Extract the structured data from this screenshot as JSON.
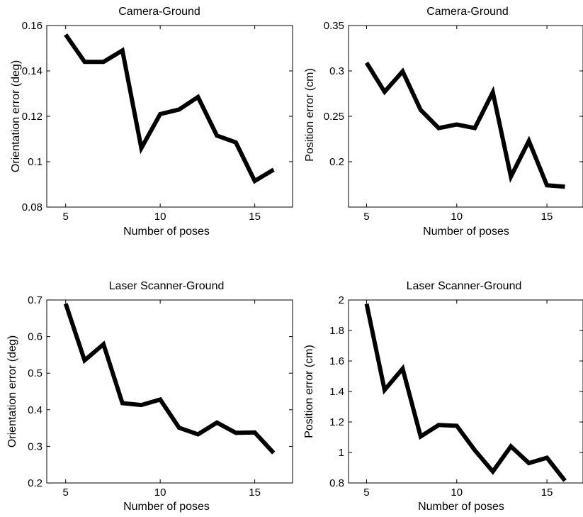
{
  "chart_data": [
    {
      "type": "line",
      "title": "Camera-Ground",
      "xlabel": "Number of poses",
      "ylabel": "Orientation error (deg)",
      "xlim": [
        4,
        17
      ],
      "ylim": [
        0.08,
        0.16
      ],
      "xticks": [
        5,
        10,
        15
      ],
      "xtick_labels": [
        "5",
        "10",
        "15"
      ],
      "yticks": [
        0.08,
        0.1,
        0.12,
        0.14,
        0.16
      ],
      "ytick_labels": [
        "0.08",
        "0.1",
        "0.12",
        "0.14",
        "0.16"
      ],
      "grid": false,
      "line_color": "#000000",
      "x": [
        5,
        6,
        7,
        8,
        9,
        10,
        11,
        12,
        13,
        14,
        15,
        16
      ],
      "y": [
        0.156,
        0.144,
        0.144,
        0.149,
        0.106,
        0.121,
        0.123,
        0.1285,
        0.1115,
        0.1085,
        0.0915,
        0.0965
      ]
    },
    {
      "type": "line",
      "title": "Camera-Ground",
      "xlabel": "Number of poses",
      "ylabel": "Position error (cm)",
      "xlim": [
        4,
        17
      ],
      "ylim": [
        0.15,
        0.35
      ],
      "xticks": [
        5,
        10,
        15
      ],
      "xtick_labels": [
        "5",
        "10",
        "15"
      ],
      "yticks": [
        0.2,
        0.25,
        0.3,
        0.35
      ],
      "ytick_labels": [
        "0.2",
        "0.25",
        "0.3",
        "0.35"
      ],
      "grid": false,
      "line_color": "#000000",
      "x": [
        5,
        6,
        7,
        8,
        9,
        10,
        11,
        12,
        13,
        14,
        15,
        16
      ],
      "y": [
        0.309,
        0.277,
        0.2995,
        0.257,
        0.237,
        0.241,
        0.237,
        0.2765,
        0.1835,
        0.223,
        0.174,
        0.1725
      ]
    },
    {
      "type": "line",
      "title": "Laser Scanner-Ground",
      "xlabel": "Number of poses",
      "ylabel": "Orientation error (deg)",
      "xlim": [
        4,
        17
      ],
      "ylim": [
        0.2,
        0.7
      ],
      "xticks": [
        5,
        10,
        15
      ],
      "xtick_labels": [
        "5",
        "10",
        "15"
      ],
      "yticks": [
        0.2,
        0.3,
        0.4,
        0.5,
        0.6,
        0.7
      ],
      "ytick_labels": [
        "0.2",
        "0.3",
        "0.4",
        "0.5",
        "0.6",
        "0.7"
      ],
      "grid": false,
      "line_color": "#000000",
      "x": [
        5,
        6,
        7,
        8,
        9,
        10,
        11,
        12,
        13,
        14,
        15,
        16
      ],
      "y": [
        0.69,
        0.535,
        0.579,
        0.418,
        0.413,
        0.428,
        0.351,
        0.333,
        0.365,
        0.337,
        0.338,
        0.282
      ]
    },
    {
      "type": "line",
      "title": "Laser Scanner-Ground",
      "xlabel": "Number of poses",
      "ylabel": "Position error (cm)",
      "xlim": [
        4,
        17
      ],
      "ylim": [
        0.8,
        2.0
      ],
      "xticks": [
        5,
        10,
        15
      ],
      "xtick_labels": [
        "5",
        "10",
        "15"
      ],
      "yticks": [
        0.8,
        1.0,
        1.2,
        1.4,
        1.6,
        1.8,
        2.0
      ],
      "ytick_labels": [
        "0.8",
        "1",
        "1.2",
        "1.4",
        "1.6",
        "1.8",
        "2"
      ],
      "grid": false,
      "line_color": "#000000",
      "x": [
        5,
        6,
        7,
        8,
        9,
        10,
        11,
        12,
        13,
        14,
        15,
        16
      ],
      "y": [
        1.975,
        1.41,
        1.55,
        1.105,
        1.18,
        1.175,
        1.015,
        0.875,
        1.04,
        0.93,
        0.965,
        0.815
      ]
    }
  ]
}
